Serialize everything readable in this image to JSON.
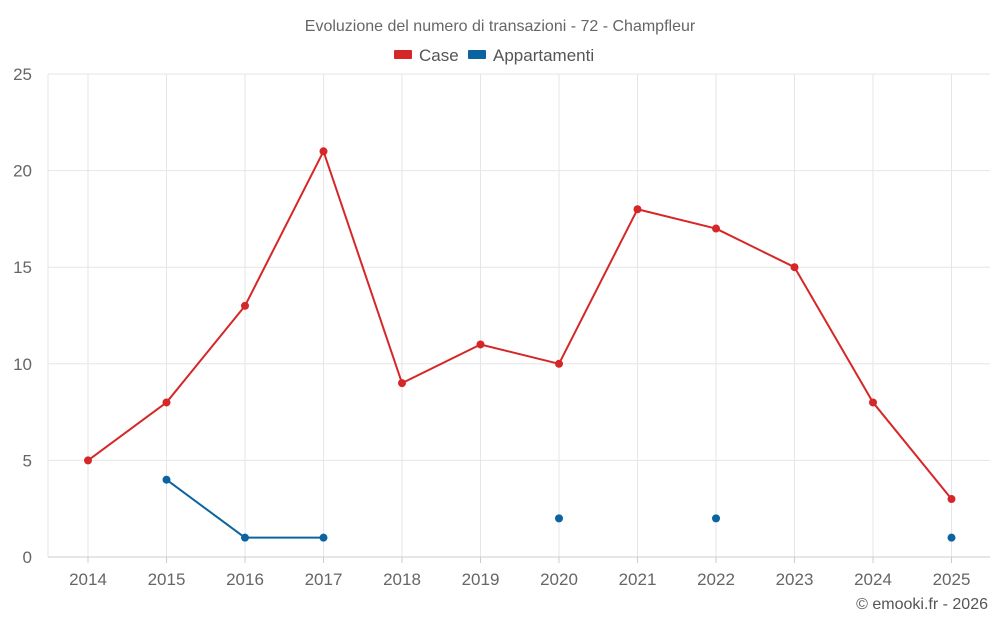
{
  "chart_data": {
    "type": "line",
    "title": "Evoluzione del numero di transazioni - 72 - Champfleur",
    "categories": [
      "2014",
      "2015",
      "2016",
      "2017",
      "2018",
      "2019",
      "2020",
      "2021",
      "2022",
      "2023",
      "2024",
      "2025"
    ],
    "ylim": [
      0,
      25
    ],
    "yticks": [
      0,
      5,
      10,
      15,
      20,
      25
    ],
    "grid": true,
    "legend_position": "top-center",
    "series": [
      {
        "name": "Case",
        "color": "#d62728",
        "values": [
          5,
          8,
          13,
          21,
          9,
          11,
          10,
          18,
          17,
          15,
          8,
          3
        ]
      },
      {
        "name": "Appartamenti",
        "color": "#0b64a0",
        "values": [
          null,
          4,
          1,
          1,
          null,
          null,
          2,
          null,
          2,
          null,
          null,
          1
        ]
      }
    ]
  },
  "credit": "© emooki.fr - 2026"
}
